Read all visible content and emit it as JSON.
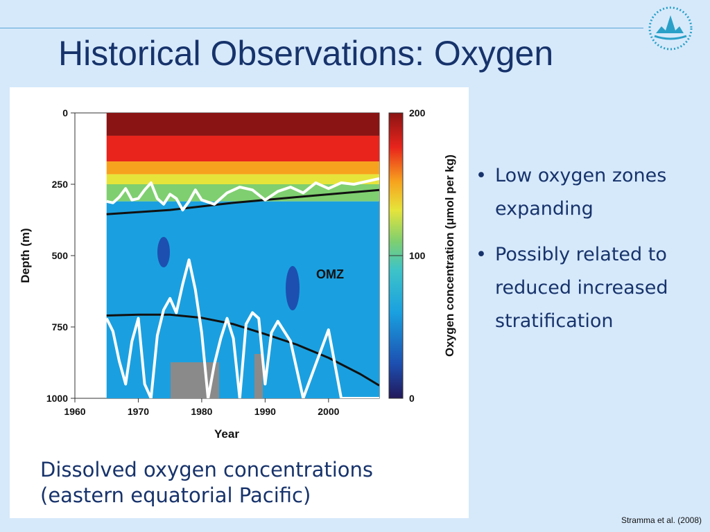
{
  "slide": {
    "title": "Historical Observations: Oxygen",
    "caption_lines": [
      "Dissolved oxygen concentrations",
      "(eastern equatorial Pacific)"
    ],
    "bullets": [
      "Low oxygen zones expanding",
      "Possibly related to reduced increased stratification"
    ],
    "bullet_glyph": "•",
    "source": "Stramma et al. (2008)",
    "logo_icon": "research-vessel-logo-icon",
    "colors": {
      "background": "#d6e9fb",
      "title": "#17336b",
      "rule": "#5aa6d6"
    }
  },
  "chart_data": {
    "type": "heatmap",
    "xlabel": "Year",
    "ylabel": "Depth (m)",
    "colorbar_label": "Oxygen concentration (μmol per kg)",
    "annotation": "OMZ",
    "xlim": [
      1960,
      2008
    ],
    "ylim": [
      1000,
      0
    ],
    "xticks": [
      1960,
      1970,
      1980,
      1990,
      2000
    ],
    "yticks": [
      0,
      250,
      500,
      750,
      1000
    ],
    "colorbar_ticks": [
      0,
      100,
      200
    ],
    "colorbar_range": [
      0,
      200
    ],
    "data_start_year": 1965,
    "data_end_year": 2008,
    "colorscale": [
      "#22185a",
      "#1d4fb0",
      "#1aa0e0",
      "#3ec3c8",
      "#7fcf70",
      "#e6e43b",
      "#f7a21e",
      "#e8241c",
      "#8a1414"
    ],
    "depth_bands": [
      {
        "depth_top": 0,
        "depth_bottom": 80,
        "oxygen": 195
      },
      {
        "depth_top": 80,
        "depth_bottom": 170,
        "oxygen": 180
      },
      {
        "depth_top": 170,
        "depth_bottom": 215,
        "oxygen": 150
      },
      {
        "depth_top": 215,
        "depth_bottom": 250,
        "oxygen": 120
      },
      {
        "depth_top": 250,
        "depth_bottom": 310,
        "oxygen": 95
      },
      {
        "depth_top": 310,
        "depth_bottom": 1000,
        "oxygen": 45
      }
    ],
    "series": [
      {
        "name": "upper OMZ boundary trend",
        "x": [
          1965,
          1975,
          1985,
          1995,
          2008
        ],
        "y": [
          355,
          340,
          315,
          295,
          270
        ]
      },
      {
        "name": "lower OMZ boundary trend",
        "x": [
          1965,
          1970,
          1975,
          1980,
          1985,
          1990,
          1995,
          2000,
          2005,
          2008
        ],
        "y": [
          710,
          707,
          707,
          718,
          740,
          775,
          812,
          858,
          915,
          955
        ]
      },
      {
        "name": "upper contour",
        "x": [
          1965,
          1966,
          1967,
          1968,
          1969,
          1970,
          1971,
          1972,
          1973,
          1974,
          1975,
          1976,
          1977,
          1978,
          1979,
          1980,
          1982,
          1984,
          1986,
          1988,
          1990,
          1992,
          1994,
          1996,
          1998,
          2000,
          2002,
          2004,
          2006,
          2008
        ],
        "y": [
          310,
          315,
          295,
          265,
          305,
          300,
          270,
          245,
          300,
          320,
          285,
          300,
          340,
          310,
          270,
          305,
          320,
          280,
          260,
          270,
          305,
          275,
          260,
          280,
          245,
          265,
          245,
          250,
          240,
          230
        ]
      },
      {
        "name": "lower contour",
        "x": [
          1965,
          1966,
          1967,
          1968,
          1969,
          1970,
          1971,
          1972,
          1973,
          1974,
          1975,
          1976,
          1977,
          1978,
          1979,
          1980,
          1981,
          1982,
          1983,
          1984,
          1985,
          1986,
          1987,
          1988,
          1989,
          1990,
          1991,
          1992,
          1994,
          1996,
          1998,
          2000,
          2002,
          2004,
          2006,
          2008
        ],
        "y": [
          720,
          765,
          870,
          950,
          800,
          720,
          950,
          1000,
          780,
          690,
          650,
          700,
          600,
          515,
          620,
          770,
          1000,
          880,
          790,
          720,
          790,
          1000,
          740,
          700,
          720,
          950,
          770,
          730,
          800,
          1000,
          880,
          760,
          1000,
          1000,
          1000,
          1000
        ]
      }
    ]
  }
}
